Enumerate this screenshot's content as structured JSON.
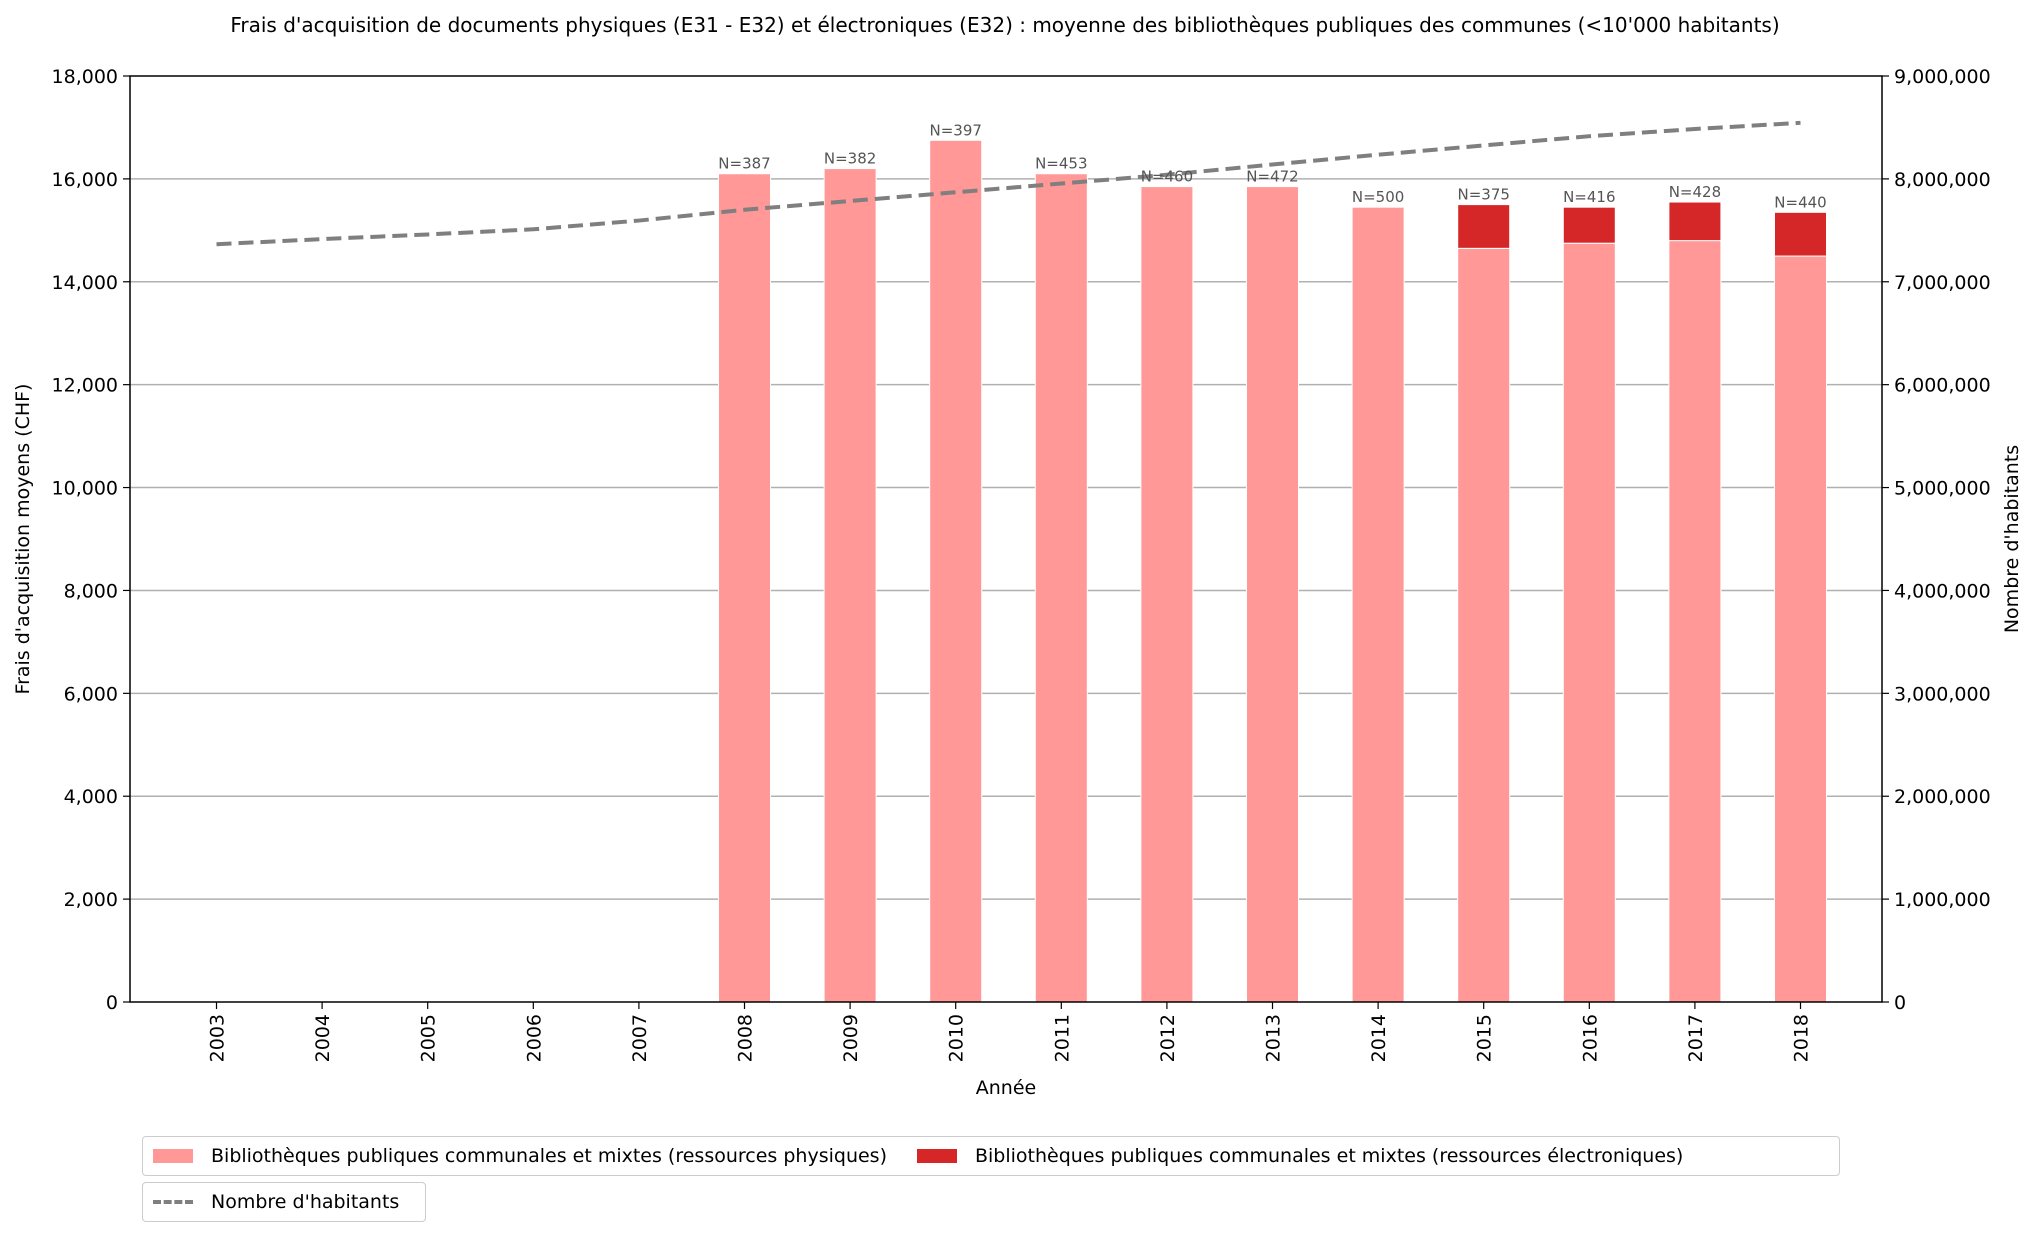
{
  "chart_data": {
    "type": "bar",
    "title": "Frais d'acquisition de documents physiques (E31 - E32) et électroniques (E32) : moyenne des bibliothèques publiques des communes (<10'000 habitants)",
    "xlabel": "Année",
    "ylabel": "Frais d'acquisition moyens (CHF)",
    "y2label": "Nombre d'habitants",
    "ylim": [
      0,
      18000
    ],
    "y2lim": [
      0,
      9000000
    ],
    "yticks": [
      "0",
      "2,000",
      "4,000",
      "6,000",
      "8,000",
      "10,000",
      "12,000",
      "14,000",
      "16,000",
      "18,000"
    ],
    "y2ticks": [
      "0",
      "1,000,000",
      "2,000,000",
      "3,000,000",
      "4,000,000",
      "5,000,000",
      "6,000,000",
      "7,000,000",
      "8,000,000",
      "9,000,000"
    ],
    "grid": true,
    "legend_position": "bottom",
    "categories": [
      "2003",
      "2004",
      "2005",
      "2006",
      "2007",
      "2008",
      "2009",
      "2010",
      "2011",
      "2012",
      "2013",
      "2014",
      "2015",
      "2016",
      "2017",
      "2018"
    ],
    "series": [
      {
        "name": "Bibliothèques publiques communales et mixtes (ressources physiques)",
        "color": "#ff9896",
        "stack": "bars",
        "values": [
          0,
          0,
          0,
          0,
          0,
          16100,
          16200,
          16750,
          16100,
          15850,
          15850,
          15450,
          14650,
          14750,
          14800,
          14500
        ]
      },
      {
        "name": "Bibliothèques publiques communales et mixtes (ressources électroniques)",
        "color": "#d62728",
        "stack": "bars",
        "values": [
          0,
          0,
          0,
          0,
          0,
          0,
          0,
          0,
          0,
          0,
          0,
          0,
          850,
          700,
          750,
          850
        ]
      },
      {
        "name": "Nombre d'habitants",
        "color": "#7f7f7f",
        "type": "line",
        "axis": "right",
        "values": [
          7365000,
          7415000,
          7460000,
          7510000,
          7595000,
          7700000,
          7785000,
          7870000,
          7955000,
          8040000,
          8140000,
          8235000,
          8325000,
          8415000,
          8485000,
          8545000
        ]
      }
    ],
    "annotations": [
      "",
      "",
      "",
      "",
      "",
      "N=387",
      "N=382",
      "N=397",
      "N=453",
      "N=460",
      "N=472",
      "N=500",
      "N=375",
      "N=416",
      "N=428",
      "N=440"
    ]
  }
}
